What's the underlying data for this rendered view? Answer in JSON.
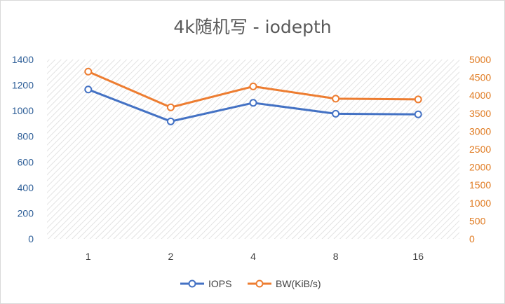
{
  "chart_data": {
    "type": "line",
    "title": "4k随机写 - iodepth",
    "categories": [
      "1",
      "2",
      "4",
      "8",
      "16"
    ],
    "series": [
      {
        "name": "IOPS",
        "axis": "left",
        "color": "#4472c4",
        "values": [
          1166,
          917,
          1062,
          977,
          972
        ]
      },
      {
        "name": "BW(KiB/s)",
        "axis": "right",
        "color": "#ed7d31",
        "values": [
          4664,
          3667,
          4250,
          3908,
          3888
        ]
      }
    ],
    "y_left": {
      "min": 0,
      "max": 1400,
      "ticks": [
        "0",
        "200",
        "400",
        "600",
        "800",
        "1000",
        "1200",
        "1400"
      ]
    },
    "y_right": {
      "min": 0,
      "max": 5000,
      "ticks": [
        "0",
        "500",
        "1000",
        "1500",
        "2000",
        "2500",
        "3000",
        "3500",
        "4000",
        "4500",
        "5000"
      ]
    },
    "plot_background": "hatched",
    "grid": false,
    "legend_position": "bottom"
  }
}
